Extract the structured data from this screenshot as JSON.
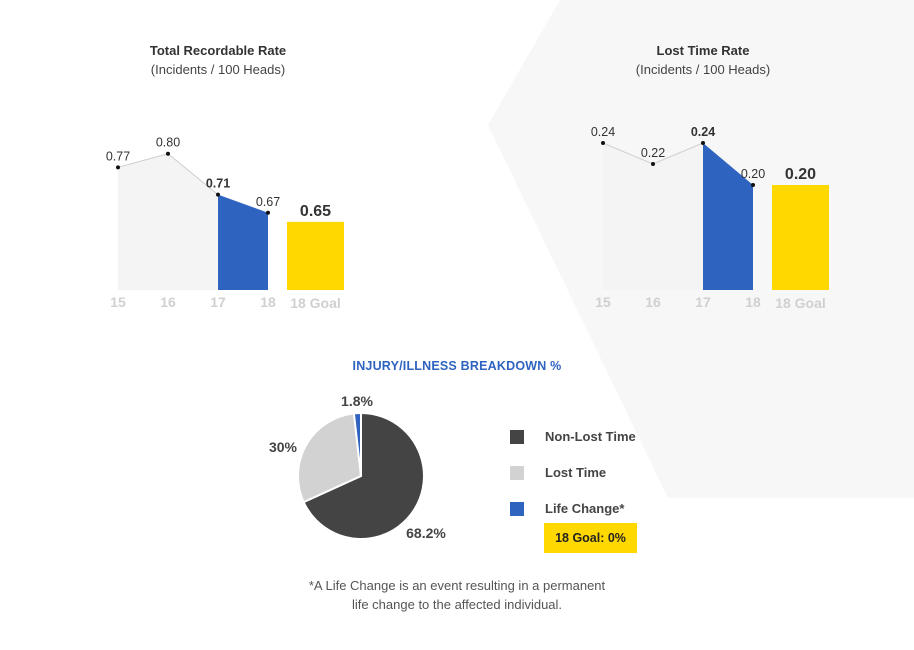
{
  "colors": {
    "prior_years_fill": "#f4f4f4",
    "prior_years_line": "#cfcfcf",
    "current_blue": "#2f63c0",
    "goal_yellow": "#ffd800",
    "tick_gray": "#d0d0d0",
    "non_lost_time": "#444444",
    "lost_time": "#d2d2d2",
    "life_change": "#2f63c0"
  },
  "chart_data": [
    {
      "type": "area",
      "title": "Total Recordable Rate",
      "subtitle": "(Incidents / 100 Heads)",
      "categories": [
        "15",
        "16",
        "17",
        "18"
      ],
      "values": [
        0.77,
        0.8,
        0.71,
        0.67
      ],
      "value_labels": [
        "0.77",
        "0.80",
        "0.71",
        "0.67"
      ],
      "highlight_range": [
        "17",
        "18"
      ],
      "goal": {
        "label": "18 Goal",
        "value": 0.65,
        "value_label": "0.65"
      },
      "ylim": [
        0.5,
        0.85
      ]
    },
    {
      "type": "area",
      "title": "Lost Time Rate",
      "subtitle": "(Incidents / 100 Heads)",
      "categories": [
        "15",
        "16",
        "17",
        "18"
      ],
      "values": [
        0.24,
        0.22,
        0.24,
        0.2
      ],
      "value_labels": [
        "0.24",
        "0.22",
        "0.24",
        "0.20"
      ],
      "highlight_range": [
        "17",
        "18"
      ],
      "goal": {
        "label": "18 Goal",
        "value": 0.2,
        "value_label": "0.20"
      },
      "ylim": [
        0.1,
        0.26
      ]
    },
    {
      "type": "pie",
      "title": "INJURY/ILLNESS BREAKDOWN %",
      "slices": [
        {
          "name": "Non-Lost Time",
          "value": 68.2,
          "label": "68.2%",
          "color": "#444444"
        },
        {
          "name": "Lost Time",
          "value": 30,
          "label": "30%",
          "color": "#d2d2d2"
        },
        {
          "name": "Life Change*",
          "value": 1.8,
          "label": "1.8%",
          "color": "#2f63c0"
        }
      ]
    }
  ],
  "legend": {
    "items": [
      {
        "label": "Non-Lost Time",
        "color": "#444444"
      },
      {
        "label": "Lost Time",
        "color": "#d2d2d2"
      },
      {
        "label": "Life Change*",
        "color": "#2f63c0"
      }
    ],
    "goal_note": "18 Goal: 0%"
  },
  "footnote": {
    "line1": "*A Life Change is an event resulting in a permanent",
    "line2": "life change to the affected individual."
  }
}
